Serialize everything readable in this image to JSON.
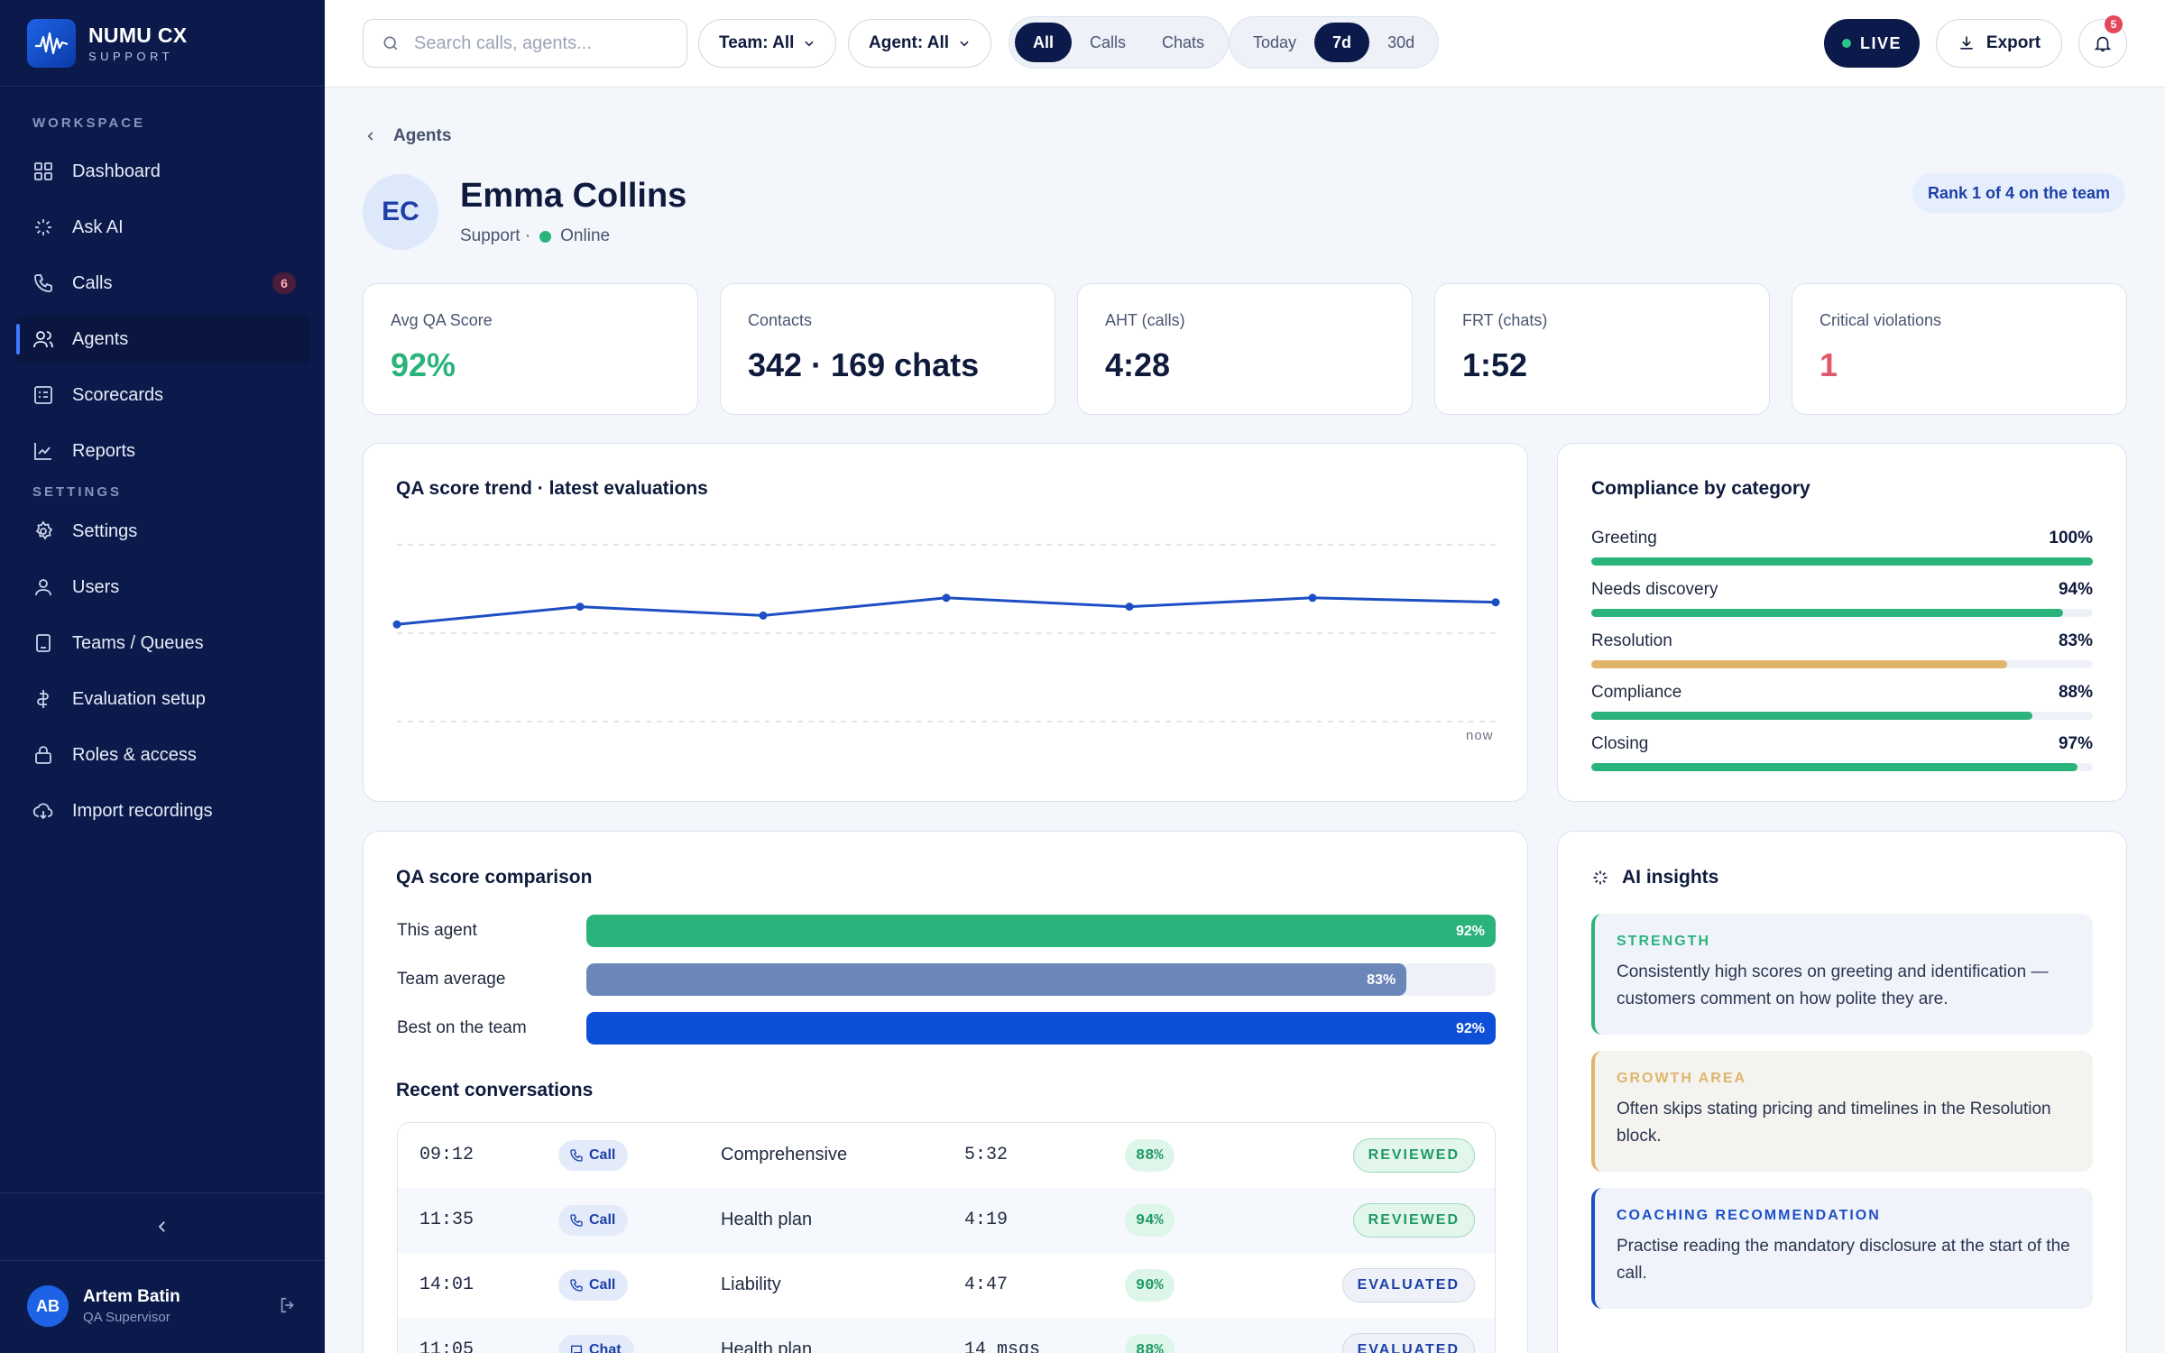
{
  "brand": {
    "name": "NUMU CX",
    "sub": "SUPPORT"
  },
  "sidebar": {
    "workspace_label": "WORKSPACE",
    "settings_label": "SETTINGS",
    "items": [
      {
        "label": "Dashboard",
        "icon": "grid-icon"
      },
      {
        "label": "Ask AI",
        "icon": "sparkle-icon"
      },
      {
        "label": "Calls",
        "icon": "phone-icon",
        "count": "6"
      },
      {
        "label": "Agents",
        "icon": "users-icon",
        "active": true
      },
      {
        "label": "Scorecards",
        "icon": "scorecard-icon"
      },
      {
        "label": "Reports",
        "icon": "chart-icon"
      }
    ],
    "settings_items": [
      {
        "label": "Settings",
        "icon": "gear-icon"
      },
      {
        "label": "Users",
        "icon": "user-icon"
      },
      {
        "label": "Teams / Queues",
        "icon": "queue-icon"
      },
      {
        "label": "Evaluation setup",
        "icon": "setup-icon"
      },
      {
        "label": "Roles & access",
        "icon": "lock-icon"
      },
      {
        "label": "Import recordings",
        "icon": "cloud-icon"
      }
    ],
    "user": {
      "initials": "AB",
      "name": "Artem Batin",
      "role": "QA Supervisor"
    }
  },
  "topbar": {
    "search_placeholder": "Search calls, agents...",
    "team_filter": "Team: All",
    "agent_filter": "Agent: All",
    "channel_tabs": [
      "All",
      "Calls",
      "Chats"
    ],
    "channel_selected": "All",
    "period_tabs": [
      "Today",
      "7d",
      "30d"
    ],
    "period_selected": "7d",
    "live_label": "LIVE",
    "export_label": "Export",
    "notification_count": "5"
  },
  "breadcrumb": "Agents",
  "agent": {
    "initials": "EC",
    "name": "Emma Collins",
    "department": "Support ·",
    "status": "Online",
    "rank": "Rank 1 of 4 on the team"
  },
  "kpis": [
    {
      "label": "Avg QA Score",
      "value": "92%",
      "color": "#2bb37c"
    },
    {
      "label": "Contacts",
      "value": "342 · 169 chats",
      "color": "#0f1b3d"
    },
    {
      "label": "AHT (calls)",
      "value": "4:28",
      "color": "#0f1b3d"
    },
    {
      "label": "FRT (chats)",
      "value": "1:52",
      "color": "#0f1b3d"
    },
    {
      "label": "Critical violations",
      "value": "1",
      "color": "#e0586a"
    }
  ],
  "trend": {
    "title": "QA score trend · latest evaluations",
    "x_end_label": "now"
  },
  "chart_data": {
    "type": "line",
    "title": "QA score trend · latest evaluations",
    "x": [
      1,
      2,
      3,
      4,
      5,
      6,
      7
    ],
    "series": [
      {
        "values": [
          91,
          93,
          92,
          94,
          93,
          94,
          93.5
        ]
      }
    ],
    "ylim": [
      80,
      100
    ],
    "grid": true,
    "color": "#1d4fc4"
  },
  "compliance": {
    "title": "Compliance by category",
    "items": [
      {
        "label": "Greeting",
        "value": "100%",
        "pct": 100,
        "color": "#2bb37c"
      },
      {
        "label": "Needs discovery",
        "value": "94%",
        "pct": 94,
        "color": "#2bb37c"
      },
      {
        "label": "Resolution",
        "value": "83%",
        "pct": 83,
        "color": "#e0b56b"
      },
      {
        "label": "Compliance",
        "value": "88%",
        "pct": 88,
        "color": "#2bb37c"
      },
      {
        "label": "Closing",
        "value": "97%",
        "pct": 97,
        "color": "#2bb37c"
      }
    ]
  },
  "comparison": {
    "title": "QA score comparison",
    "items": [
      {
        "label": "This agent",
        "value": "92%",
        "pct": 100,
        "color": "#2bb37c"
      },
      {
        "label": "Team average",
        "value": "83%",
        "pct": 90.2,
        "color": "#6b86b8"
      },
      {
        "label": "Best on the team",
        "value": "92%",
        "pct": 100,
        "color": "#0d4fd6"
      }
    ]
  },
  "conversations": {
    "title": "Recent conversations",
    "rows": [
      {
        "time": "09:12",
        "type": "Call",
        "scorecard": "Comprehensive",
        "duration": "5:32",
        "score": "88%",
        "status": "REVIEWED"
      },
      {
        "time": "11:35",
        "type": "Call",
        "scorecard": "Health plan",
        "duration": "4:19",
        "score": "94%",
        "status": "REVIEWED"
      },
      {
        "time": "14:01",
        "type": "Call",
        "scorecard": "Liability",
        "duration": "4:47",
        "score": "90%",
        "status": "EVALUATED"
      },
      {
        "time": "11:05",
        "type": "Chat",
        "scorecard": "Health plan",
        "duration": "14 msgs",
        "score": "88%",
        "status": "EVALUATED"
      }
    ]
  },
  "insights": {
    "title": "AI insights",
    "items": [
      {
        "heading": "STRENGTH",
        "text": "Consistently high scores on greeting and identification — customers comment on how polite they are.",
        "accent": "#2bb37c",
        "bg": "#f0f4fa"
      },
      {
        "heading": "GROWTH AREA",
        "text": "Often skips stating pricing and timelines in the Resolution block.",
        "accent": "#e0b56b",
        "bg": "#f5f3f0"
      },
      {
        "heading": "COACHING RECOMMENDATION",
        "text": "Practise reading the mandatory disclosure at the start of the call.",
        "accent": "#1d4fc4",
        "bg": "#f0f4fa"
      }
    ]
  }
}
